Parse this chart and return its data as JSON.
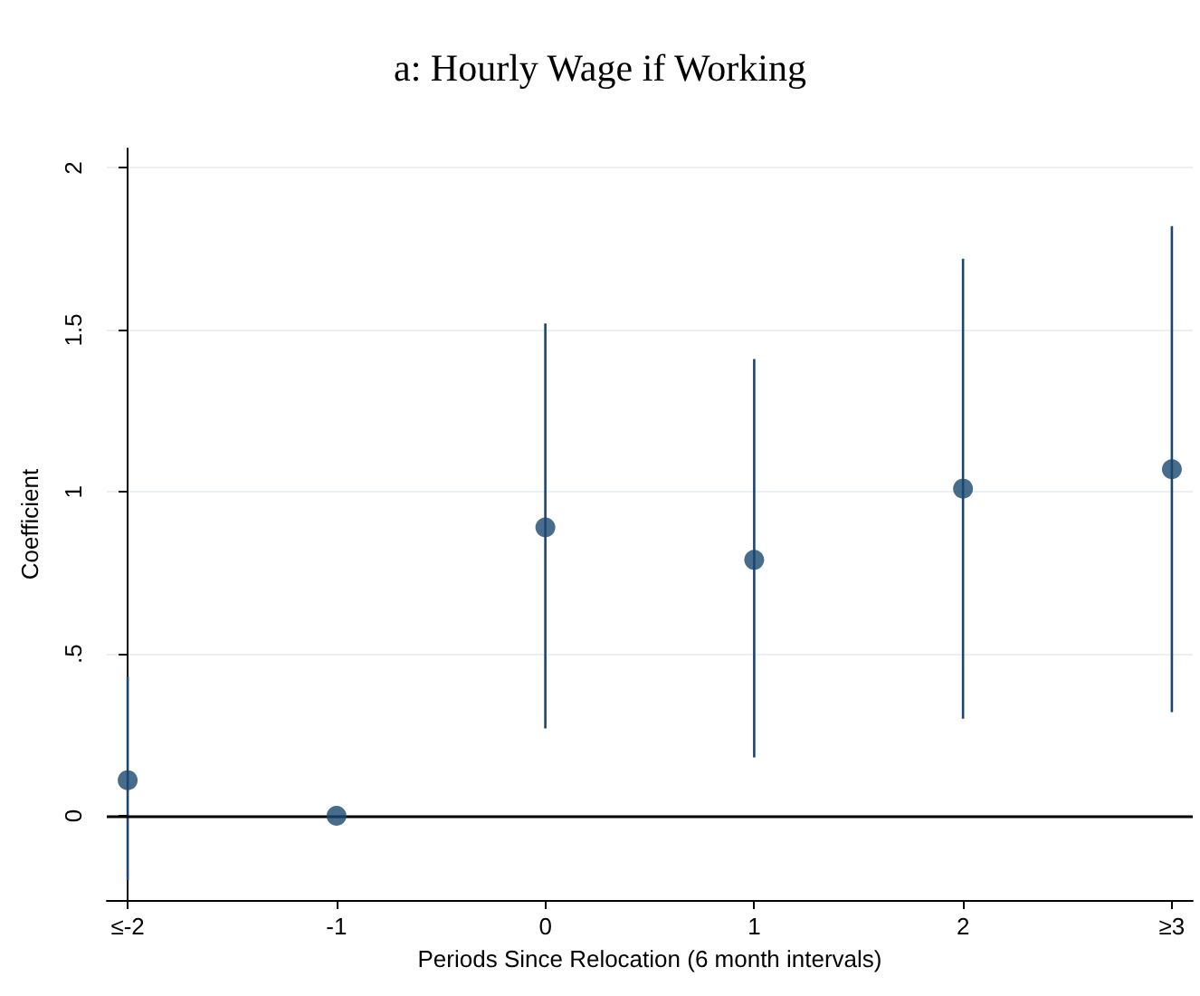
{
  "chart_data": {
    "type": "scatter",
    "title": "a: Hourly Wage if Working",
    "xlabel": "Periods Since Relocation (6 month intervals)",
    "ylabel": "Coefficient",
    "categories": [
      "≤-2",
      "-1",
      "0",
      "1",
      "2",
      "≥3"
    ],
    "values": [
      0.11,
      0,
      0.89,
      0.79,
      1.01,
      1.07
    ],
    "errors": [
      [
        -0.2,
        0.43
      ],
      null,
      [
        0.27,
        1.52
      ],
      [
        0.18,
        1.41
      ],
      [
        0.3,
        1.72
      ],
      [
        0.32,
        1.82
      ]
    ],
    "color": "#1a476f",
    "ylim": [
      -0.26,
      2.06
    ],
    "yticks": [
      0,
      {
        "value": 0.5,
        "label": ".5"
      },
      1,
      1.5,
      2
    ],
    "ref_lines": [
      {
        "axis": "y",
        "value": 0,
        "color": "#000000"
      }
    ],
    "grid": "y",
    "marker": "circle"
  }
}
